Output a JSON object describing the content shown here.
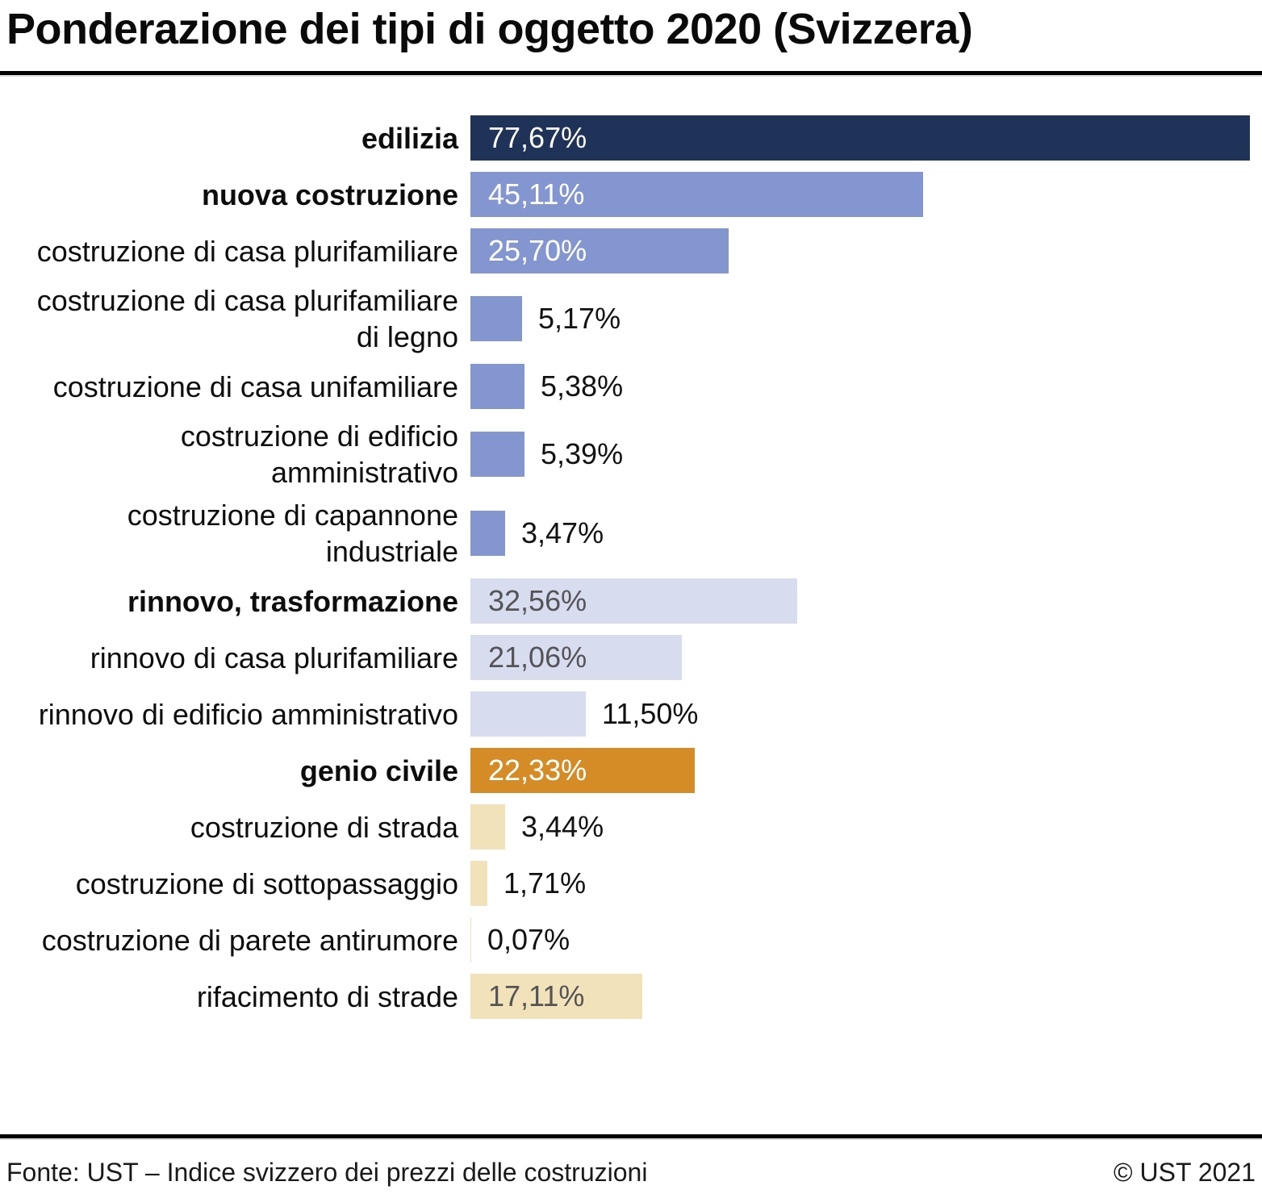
{
  "title": "Ponderazione dei tipi di oggetto 2020 (Svizzera)",
  "footer": {
    "source": "Fonte: UST – Indice svizzero dei prezzi delle costruzioni",
    "copyright": "© UST 2021"
  },
  "chart_data": {
    "type": "bar",
    "orientation": "horizontal",
    "unit": "%",
    "max_value": 77.67,
    "grid": false,
    "legend": false,
    "colors": {
      "navy": "#1e3357",
      "blue": "#8496d0",
      "lavender": "#d7dcef",
      "orange": "#d58c26",
      "cream": "#f2e2ba"
    },
    "value_text_colors": {
      "on_dark": "#ffffff",
      "on_light": "#545356",
      "outside": "#111111"
    },
    "items": [
      {
        "label_lines": [
          "edilizia"
        ],
        "bold": true,
        "value": 77.67,
        "value_label": "77,67%",
        "color": "navy",
        "value_inside": true
      },
      {
        "label_lines": [
          "nuova costruzione"
        ],
        "bold": true,
        "value": 45.11,
        "value_label": "45,11%",
        "color": "blue",
        "value_inside": true
      },
      {
        "label_lines": [
          "costruzione di casa plurifamiliare"
        ],
        "bold": false,
        "value": 25.7,
        "value_label": "25,70%",
        "color": "blue",
        "value_inside": true
      },
      {
        "label_lines": [
          "costruzione di casa plurifamiliare",
          "di legno"
        ],
        "bold": false,
        "value": 5.17,
        "value_label": "5,17%",
        "color": "blue",
        "value_inside": false
      },
      {
        "label_lines": [
          "costruzione di casa unifamiliare"
        ],
        "bold": false,
        "value": 5.38,
        "value_label": "5,38%",
        "color": "blue",
        "value_inside": false
      },
      {
        "label_lines": [
          "costruzione di edificio",
          "amministrativo"
        ],
        "bold": false,
        "value": 5.39,
        "value_label": "5,39%",
        "color": "blue",
        "value_inside": false
      },
      {
        "label_lines": [
          "costruzione di capannone",
          "industriale"
        ],
        "bold": false,
        "value": 3.47,
        "value_label": "3,47%",
        "color": "blue",
        "value_inside": false
      },
      {
        "label_lines": [
          "rinnovo, trasformazione"
        ],
        "bold": true,
        "value": 32.56,
        "value_label": "32,56%",
        "color": "lavender",
        "value_inside": true
      },
      {
        "label_lines": [
          "rinnovo di casa plurifamiliare"
        ],
        "bold": false,
        "value": 21.06,
        "value_label": "21,06%",
        "color": "lavender",
        "value_inside": true
      },
      {
        "label_lines": [
          "rinnovo di edificio amministrativo"
        ],
        "bold": false,
        "value": 11.5,
        "value_label": "11,50%",
        "color": "lavender",
        "value_inside": false
      },
      {
        "label_lines": [
          "genio civile"
        ],
        "bold": true,
        "value": 22.33,
        "value_label": "22,33%",
        "color": "orange",
        "value_inside": true
      },
      {
        "label_lines": [
          "costruzione di strada"
        ],
        "bold": false,
        "value": 3.44,
        "value_label": "3,44%",
        "color": "cream",
        "value_inside": false
      },
      {
        "label_lines": [
          "costruzione di sottopassaggio"
        ],
        "bold": false,
        "value": 1.71,
        "value_label": "1,71%",
        "color": "cream",
        "value_inside": false
      },
      {
        "label_lines": [
          "costruzione di parete antirumore"
        ],
        "bold": false,
        "value": 0.07,
        "value_label": "0,07%",
        "color": "cream",
        "value_inside": false
      },
      {
        "label_lines": [
          "rifacimento di strade"
        ],
        "bold": false,
        "value": 17.11,
        "value_label": "17,11%",
        "color": "cream",
        "value_inside": true
      }
    ]
  }
}
